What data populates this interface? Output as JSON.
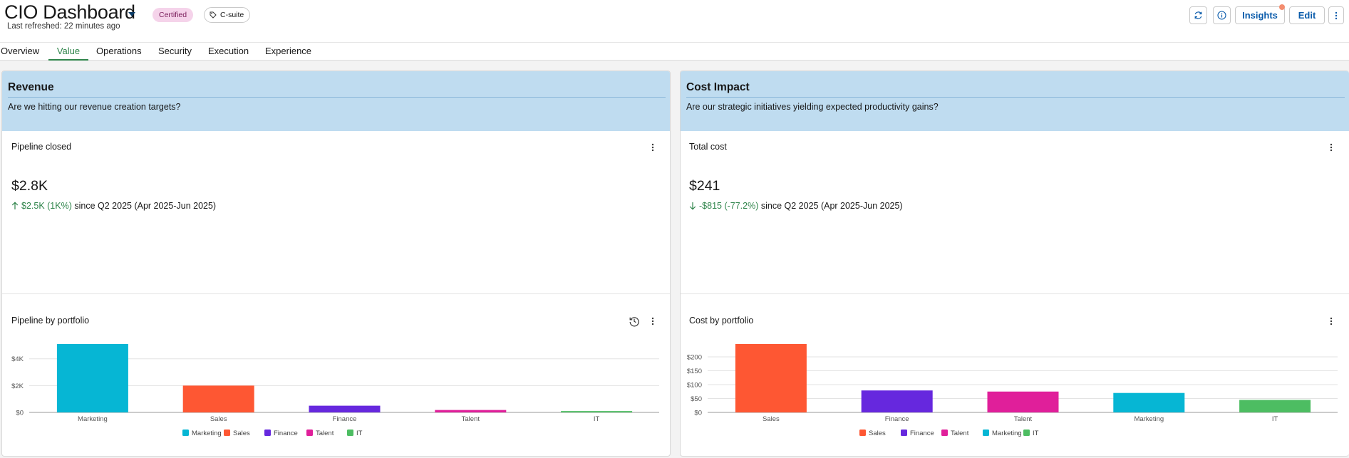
{
  "header": {
    "title": "CIO Dashboard",
    "last_refreshed": "Last refreshed: 22 minutes ago",
    "certified_badge": "Certified",
    "tag_label": "C-suite",
    "insights_label": "Insights",
    "edit_label": "Edit",
    "icons": [
      "refresh-icon",
      "info-icon",
      "more-vertical-icon",
      "tag-icon",
      "chevron-down-icon"
    ]
  },
  "tabs": [
    {
      "label": "Overview"
    },
    {
      "label": "Value",
      "active": true
    },
    {
      "label": "Operations"
    },
    {
      "label": "Security"
    },
    {
      "label": "Execution"
    },
    {
      "label": "Experience"
    }
  ],
  "colors": {
    "section_header_bg": "#bfdcf0",
    "positive": "#2e844a",
    "accent_blue": "#0b5cab",
    "series": {
      "Marketing": "#06b6d4",
      "Sales": "#fe5733",
      "Finance": "#6628de",
      "Talent": "#e01f9a",
      "IT": "#4dbd62"
    }
  },
  "revenue": {
    "title": "Revenue",
    "question": "Are we hitting our revenue creation targets?",
    "kpi": {
      "title": "Pipeline closed",
      "value": "$2.8K",
      "change": "$2.5K (1K%)",
      "period": "since Q2 2025 (Apr 2025-Jun 2025)",
      "direction": "up"
    },
    "chart_title": "Pipeline by portfolio"
  },
  "cost": {
    "title": "Cost Impact",
    "question": "Are our strategic initiatives yielding expected productivity gains?",
    "kpi": {
      "title": "Total cost",
      "value": "$241",
      "change": "-$815 (-77.2%)",
      "period": "since Q2 2025 (Apr 2025-Jun 2025)",
      "direction": "down"
    },
    "chart_title": "Cost by portfolio"
  },
  "chart_data": [
    {
      "type": "bar",
      "title": "Pipeline by portfolio",
      "categories": [
        "Marketing",
        "Sales",
        "Finance",
        "Talent",
        "IT"
      ],
      "values": [
        5100,
        2000,
        500,
        180,
        100
      ],
      "ylim": [
        0,
        5100
      ],
      "yticks": [
        0,
        2000,
        4000
      ],
      "ytick_labels": [
        "$0",
        "$2K",
        "$4K"
      ],
      "grid": true,
      "legend": [
        "Marketing",
        "Sales",
        "Finance",
        "Talent",
        "IT"
      ],
      "legend_position": "bottom"
    },
    {
      "type": "bar",
      "title": "Cost by portfolio",
      "categories": [
        "Sales",
        "Finance",
        "Talent",
        "Marketing",
        "IT"
      ],
      "values": [
        246,
        79,
        75,
        70,
        45
      ],
      "ylim": [
        0,
        246
      ],
      "yticks": [
        0,
        50,
        100,
        150,
        200
      ],
      "ytick_labels": [
        "$0",
        "$50",
        "$100",
        "$150",
        "$200"
      ],
      "grid": true,
      "legend": [
        "Sales",
        "Finance",
        "Talent",
        "Marketing",
        "IT"
      ],
      "legend_position": "bottom"
    }
  ]
}
